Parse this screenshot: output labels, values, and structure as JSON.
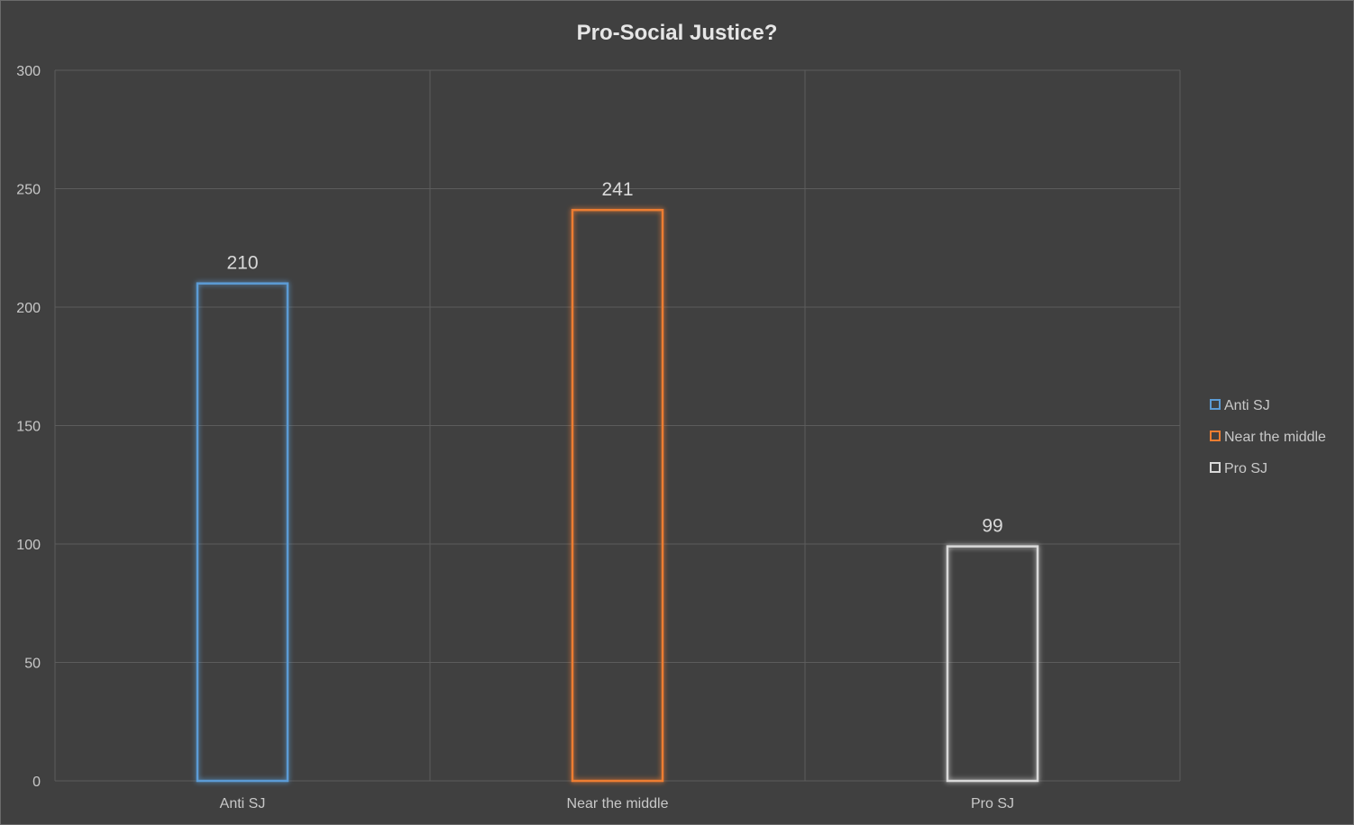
{
  "chart_data": {
    "type": "bar",
    "title": "Pro-Social Justice?",
    "categories": [
      "Anti SJ",
      "Near the middle",
      "Pro SJ"
    ],
    "series": [
      {
        "name": "Anti SJ",
        "values": [
          210,
          null,
          null
        ],
        "color": "#5b9bd5"
      },
      {
        "name": "Near the middle",
        "values": [
          null,
          241,
          null
        ],
        "color": "#ed7d31"
      },
      {
        "name": "Pro SJ",
        "values": [
          null,
          null,
          99
        ],
        "color": "#d9d9d9"
      }
    ],
    "values": [
      210,
      241,
      99
    ],
    "ylim": [
      0,
      300
    ],
    "yticks": [
      0,
      50,
      100,
      150,
      200,
      250,
      300
    ],
    "xlabel": "",
    "ylabel": "",
    "grid": true,
    "legend": "right",
    "bar_style": "outline-glow"
  }
}
